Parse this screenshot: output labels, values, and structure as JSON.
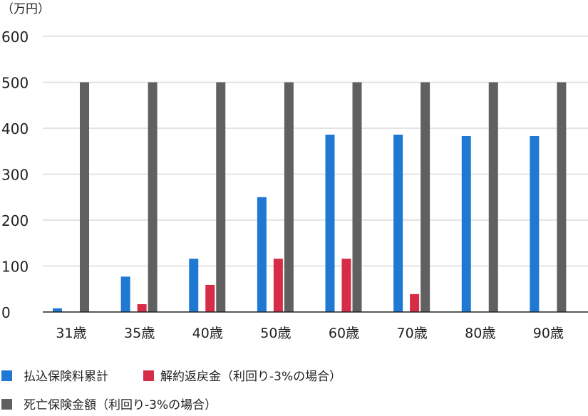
{
  "chart_data": {
    "type": "bar",
    "title": "",
    "ylabel": "（万円）",
    "xlabel": "",
    "ylim": [
      0,
      600
    ],
    "yticks": [
      0,
      100,
      200,
      300,
      400,
      500,
      600
    ],
    "grid": true,
    "legend_position": "bottom-left",
    "categories": [
      "31歳",
      "35歳",
      "40歳",
      "50歳",
      "60歳",
      "70歳",
      "80歳",
      "90歳"
    ],
    "series": [
      {
        "name": "払込保険料累計",
        "color": "#1f78d1",
        "values": [
          8,
          77,
          116,
          250,
          386,
          386,
          383,
          383
        ]
      },
      {
        "name": "解約返戻金（利回り-3%の場合）",
        "color": "#d62c47",
        "values": [
          0,
          17,
          59,
          116,
          116,
          39,
          0,
          0
        ]
      },
      {
        "name": "死亡保険金額（利回り-3%の場合）",
        "color": "#606060",
        "values": [
          500,
          500,
          500,
          500,
          500,
          500,
          500,
          500
        ]
      }
    ]
  }
}
